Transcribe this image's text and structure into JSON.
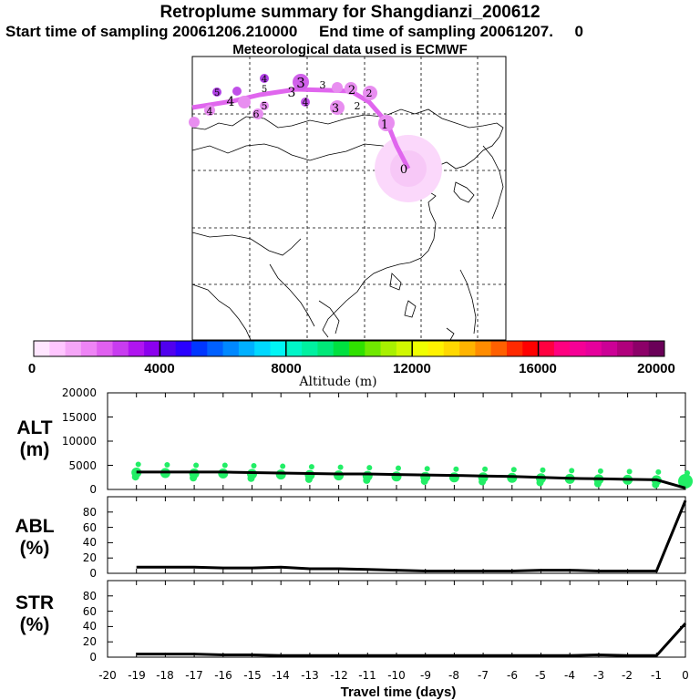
{
  "header": {
    "title": "Retroplume summary for Shangdianzi_200612",
    "sampling": "Start time of sampling 20061206.210000     End time of sampling 20061207.     0",
    "met": "Meteorological data used is ECMWF"
  },
  "colorbar": {
    "label": "Altitude (m)",
    "ticks": [
      "0",
      "4000",
      "8000",
      "12000",
      "16000",
      "20000"
    ],
    "colors": [
      "#ffe6ff",
      "#ffc6ff",
      "#f5a6f7",
      "#ee84f5",
      "#e060f0",
      "#c83cf0",
      "#b015f0",
      "#8b00ee",
      "#5000ee",
      "#2a00ff",
      "#0036ff",
      "#0060ff",
      "#0088ff",
      "#00b0ff",
      "#00d8ff",
      "#00f5f5",
      "#00f5c8",
      "#00f0a0",
      "#00e878",
      "#00e040",
      "#30e000",
      "#70e800",
      "#a8f000",
      "#d0f800",
      "#f0ff00",
      "#fff200",
      "#ffd800",
      "#ffb400",
      "#ff8c00",
      "#ff6000",
      "#ff2a00",
      "#ff0000",
      "#ff0040",
      "#ff0080",
      "#f50096",
      "#e6009c",
      "#cc0096",
      "#b0007c",
      "#8c0068",
      "#6a0058"
    ]
  },
  "map_labels": [
    "0",
    "1",
    "2",
    "2",
    "2",
    "3",
    "3",
    "3",
    "3",
    "4",
    "4",
    "4",
    "4",
    "5",
    "5",
    "5",
    "6"
  ],
  "panels": {
    "alt": {
      "label_a": "ALT",
      "label_b": "(m)",
      "yticks": [
        "0",
        "5000",
        "10000",
        "15000",
        "20000"
      ]
    },
    "abl": {
      "label_a": "ABL",
      "label_b": "(%)",
      "yticks": [
        "0",
        "20",
        "40",
        "60",
        "80"
      ]
    },
    "str": {
      "label_a": "STR",
      "label_b": "(%)",
      "yticks": [
        "0",
        "20",
        "40",
        "60",
        "80"
      ]
    }
  },
  "xaxis": {
    "label": "Travel time (days)",
    "ticks": [
      "-20",
      "-19",
      "-18",
      "-17",
      "-16",
      "-15",
      "-14",
      "-13",
      "-12",
      "-11",
      "-10",
      "-9",
      "-8",
      "-7",
      "-6",
      "-5",
      "-4",
      "-3",
      "-2",
      "-1",
      "0"
    ]
  },
  "chart_data": [
    {
      "type": "line",
      "title": "ALT",
      "xlabel": "Travel time (days)",
      "ylabel": "ALT (m)",
      "ylim": [
        0,
        20000
      ],
      "x": [
        -19,
        -18,
        -17,
        -16,
        -15,
        -14,
        -13,
        -12,
        -11,
        -10,
        -9,
        -8,
        -7,
        -6,
        -5,
        -4,
        -3,
        -2,
        -1,
        0
      ],
      "values": [
        3600,
        3600,
        3600,
        3600,
        3500,
        3400,
        3300,
        3200,
        3200,
        3100,
        3000,
        2900,
        2800,
        2700,
        2500,
        2300,
        2200,
        2100,
        2000,
        300
      ],
      "scatter_values": [
        3500,
        3400,
        3300,
        3300,
        3200,
        3100,
        3000,
        2900,
        2800,
        2700,
        2600,
        2500,
        2500,
        2400,
        2300,
        2200,
        2100,
        2000,
        1900,
        1700
      ]
    },
    {
      "type": "line",
      "title": "ABL",
      "xlabel": "Travel time (days)",
      "ylabel": "ABL (%)",
      "ylim": [
        0,
        100
      ],
      "x": [
        -19,
        -18,
        -17,
        -16,
        -15,
        -14,
        -13,
        -12,
        -11,
        -10,
        -9,
        -8,
        -7,
        -6,
        -5,
        -4,
        -3,
        -2,
        -1,
        0
      ],
      "values": [
        8,
        8,
        8,
        7,
        7,
        8,
        6,
        6,
        5,
        4,
        3,
        3,
        3,
        3,
        4,
        4,
        3,
        3,
        3,
        95
      ]
    },
    {
      "type": "line",
      "title": "STR",
      "xlabel": "Travel time (days)",
      "ylabel": "STR (%)",
      "ylim": [
        0,
        100
      ],
      "x": [
        -19,
        -18,
        -17,
        -16,
        -15,
        -14,
        -13,
        -12,
        -11,
        -10,
        -9,
        -8,
        -7,
        -6,
        -5,
        -4,
        -3,
        -2,
        -1,
        0
      ],
      "values": [
        4,
        4,
        4,
        3,
        3,
        2,
        2,
        2,
        2,
        2,
        2,
        2,
        2,
        2,
        2,
        2,
        3,
        2,
        2,
        44
      ]
    }
  ]
}
